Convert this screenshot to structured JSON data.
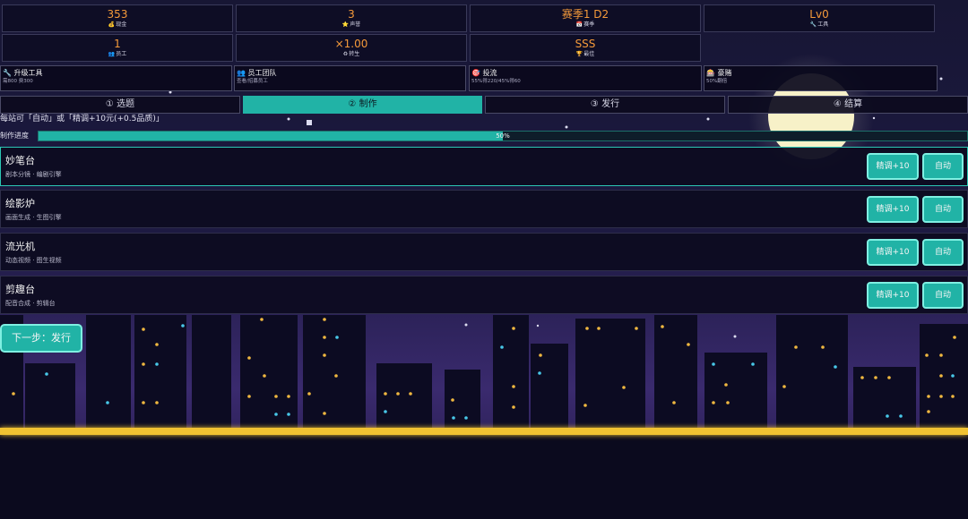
{
  "stats": [
    {
      "value": "353",
      "icon": "💰",
      "label": "现金"
    },
    {
      "value": "3",
      "icon": "⭐",
      "label": "声誉"
    },
    {
      "value": "赛季1 D2",
      "icon": "📅",
      "label": "赛季"
    },
    {
      "value": "Lv0",
      "icon": "🔧",
      "label": "工具"
    },
    {
      "value": "1",
      "icon": "👥",
      "label": "员工"
    },
    {
      "value": "×1.00",
      "icon": "♻",
      "label": "转生"
    },
    {
      "value": "SSS",
      "icon": "🏆",
      "label": "最佳"
    }
  ],
  "actions": [
    {
      "icon": "🔧",
      "title": "升级工具",
      "sub": "需800 费300"
    },
    {
      "icon": "👥",
      "title": "员工团队",
      "sub": "查看/招募员工"
    },
    {
      "icon": "🎯",
      "title": "投流",
      "sub": "55%得220/45%得60"
    },
    {
      "icon": "🎰",
      "title": "豪赌",
      "sub": "50%翻倍"
    }
  ],
  "tabs": [
    "① 选题",
    "② 制作",
    "③ 发行",
    "④ 结算"
  ],
  "active_tab": 1,
  "hint": "每站可「自动」或「精调+10元(+0.5品质)」",
  "progress": {
    "label": "制作进度",
    "percent": 50,
    "text": "50%"
  },
  "stations": [
    {
      "name": "妙笔台",
      "desc": "剧本分镜 · 编剧引擎"
    },
    {
      "name": "绘影炉",
      "desc": "画面生成 · 生图引擎"
    },
    {
      "name": "流光机",
      "desc": "动态视频 · 图生视频"
    },
    {
      "name": "剪趣台",
      "desc": "配音合成 · 剪辑台"
    }
  ],
  "buttons": {
    "refine": "精调+10",
    "auto": "自动"
  },
  "next_button": "下一步：发行",
  "colors": {
    "accent": "#21b3a6",
    "gold": "#f59a3a",
    "road": "#f1c232"
  }
}
